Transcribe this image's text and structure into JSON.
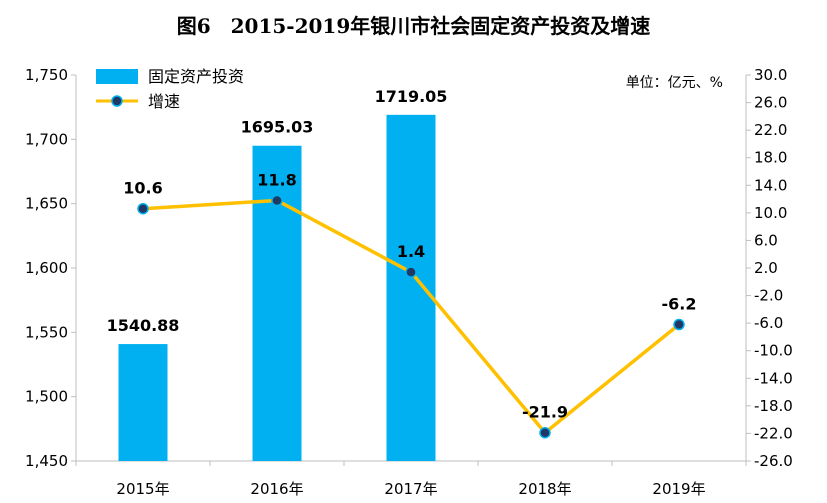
{
  "chart_data": {
    "type": "bar+line",
    "title": "图6　2015-2019年银川市社会固定资产投资及增速",
    "unit_note": "单位：亿元、%",
    "categories": [
      "2015年",
      "2016年",
      "2017年",
      "2018年",
      "2019年"
    ],
    "series": [
      {
        "name": "固定资产投资",
        "type": "bar",
        "axis": "left",
        "color": "#00B0F0",
        "values": [
          1540.88,
          1695.03,
          1719.05,
          null,
          null
        ],
        "labels": [
          "1540.88",
          "1695.03",
          "1719.05",
          "",
          ""
        ]
      },
      {
        "name": "增速",
        "type": "line",
        "axis": "right",
        "color": "#FFC000",
        "marker_color": "#1F3864",
        "values": [
          10.6,
          11.8,
          1.4,
          -21.9,
          -6.2
        ],
        "labels": [
          "10.6",
          "11.8",
          "1.4",
          "-21.9",
          "-6.2"
        ]
      }
    ],
    "y_left": {
      "ylim": [
        1450,
        1750
      ],
      "ticks": [
        1450,
        1500,
        1550,
        1600,
        1650,
        1700,
        1750
      ],
      "tick_labels": [
        "1,450",
        "1,500",
        "1,550",
        "1,600",
        "1,650",
        "1,700",
        "1,750"
      ]
    },
    "y_right": {
      "ylim": [
        -26,
        30
      ],
      "ticks": [
        30,
        26,
        22,
        18,
        14,
        10,
        6,
        2,
        -2,
        -6,
        -10,
        -14,
        -18,
        -22,
        -26
      ],
      "tick_labels": [
        "30.0",
        "26.0",
        "22.0",
        "18.0",
        "14.0",
        "10.0",
        "6.0",
        "2.0",
        "-2.0",
        "-6.0",
        "-10.0",
        "-14.0",
        "-18.0",
        "-22.0",
        "-26.0"
      ]
    },
    "grid": false,
    "legend_position": "top-left"
  }
}
